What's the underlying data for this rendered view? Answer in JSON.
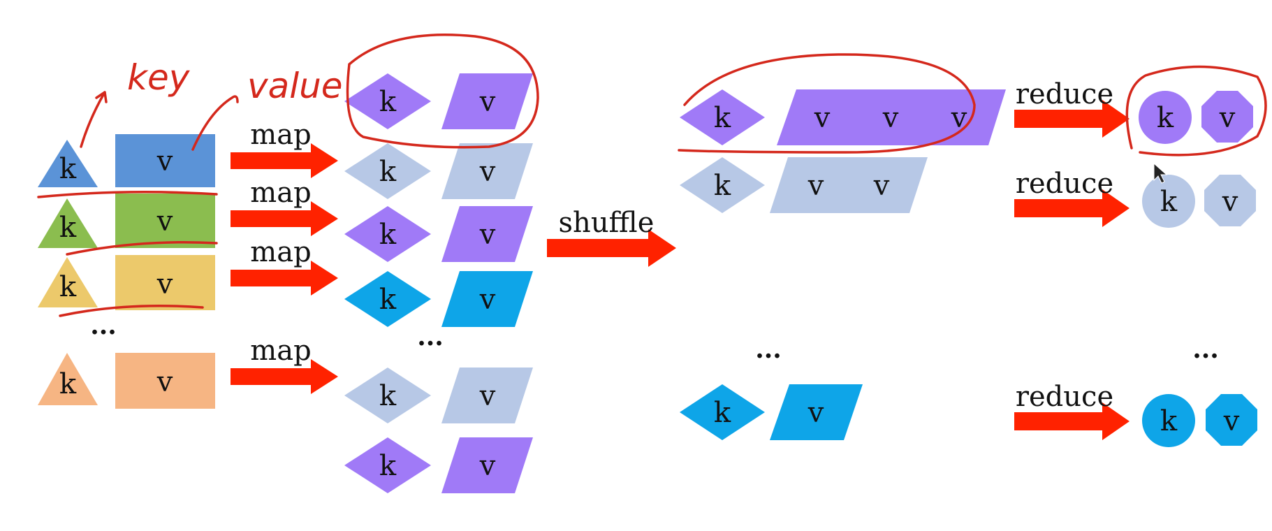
{
  "labels": {
    "key": "k",
    "value": "v",
    "ellipsis": "...",
    "map": "map",
    "shuffle": "shuffle",
    "reduce": "reduce"
  },
  "annotations": {
    "key_note": "key",
    "value_note": "value"
  },
  "colors": {
    "input_row_1": "#5b93d7",
    "input_row_2": "#8bbd4f",
    "input_row_3": "#ecc96b",
    "input_row_4": "#f6b583",
    "group_purple": "#a07af7",
    "group_lightblue": "#b7c8e6",
    "group_cyan": "#0ea5e8",
    "arrow": "#ff2200",
    "annotation_ink": "#d4281c"
  },
  "diagram": {
    "inputs": [
      "input_row_1",
      "input_row_2",
      "input_row_3",
      "input_row_4"
    ],
    "map_outputs": [
      "group_purple",
      "group_lightblue",
      "group_purple",
      "group_cyan",
      "group_lightblue",
      "group_purple"
    ],
    "shuffle_groups": [
      {
        "color": "group_purple",
        "value_count": 3
      },
      {
        "color": "group_lightblue",
        "value_count": 2
      },
      {
        "color": "group_cyan",
        "value_count": 1
      }
    ],
    "reduce_outputs": [
      "group_purple",
      "group_lightblue",
      "group_cyan"
    ]
  }
}
